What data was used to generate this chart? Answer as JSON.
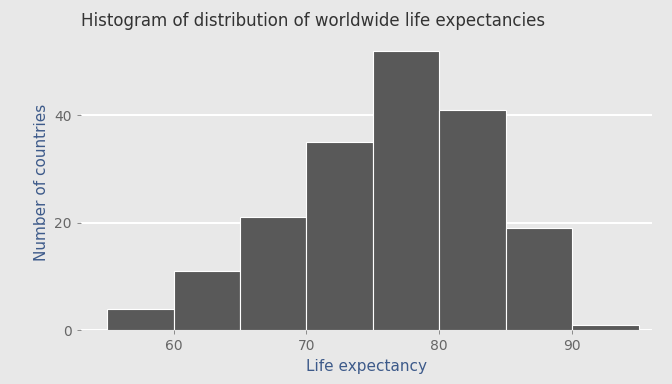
{
  "title": "Histogram of distribution of worldwide life expectancies",
  "xlabel": "Life expectancy",
  "ylabel": "Number of countries",
  "bar_color": "#595959",
  "bar_edge_color": "#ffffff",
  "figure_bg": "#e8e8e8",
  "panel_bg": "#e8e8e8",
  "grid_color": "#ffffff",
  "title_color": "#333333",
  "axis_label_color": "#3d5a8a",
  "tick_label_color": "#666666",
  "bin_edges": [
    55,
    60,
    65,
    70,
    75,
    80,
    85,
    90,
    95
  ],
  "counts": [
    4,
    11,
    21,
    35,
    52,
    41,
    19,
    1
  ],
  "xlim": [
    53,
    96
  ],
  "ylim": [
    0,
    55
  ],
  "yticks": [
    0,
    20,
    40
  ],
  "xticks": [
    60,
    70,
    80,
    90
  ],
  "title_fontsize": 12,
  "axis_label_fontsize": 11,
  "tick_fontsize": 10
}
